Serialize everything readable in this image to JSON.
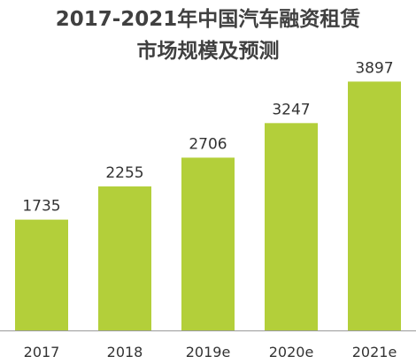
{
  "chart_data": {
    "type": "bar",
    "title": "2017-2021年中国汽车融资租赁",
    "subtitle": "市场规模及预测",
    "categories": [
      "2017",
      "2018",
      "2019e",
      "2020e",
      "2021e"
    ],
    "values": [
      1735,
      2255,
      2706,
      3247,
      3897
    ],
    "xlabel": "",
    "ylabel": "",
    "ylim": [
      0,
      4400
    ],
    "grid": false,
    "legend": "none",
    "bar_color": "#b3cf3a",
    "axis_color": "#9a9a9a"
  }
}
